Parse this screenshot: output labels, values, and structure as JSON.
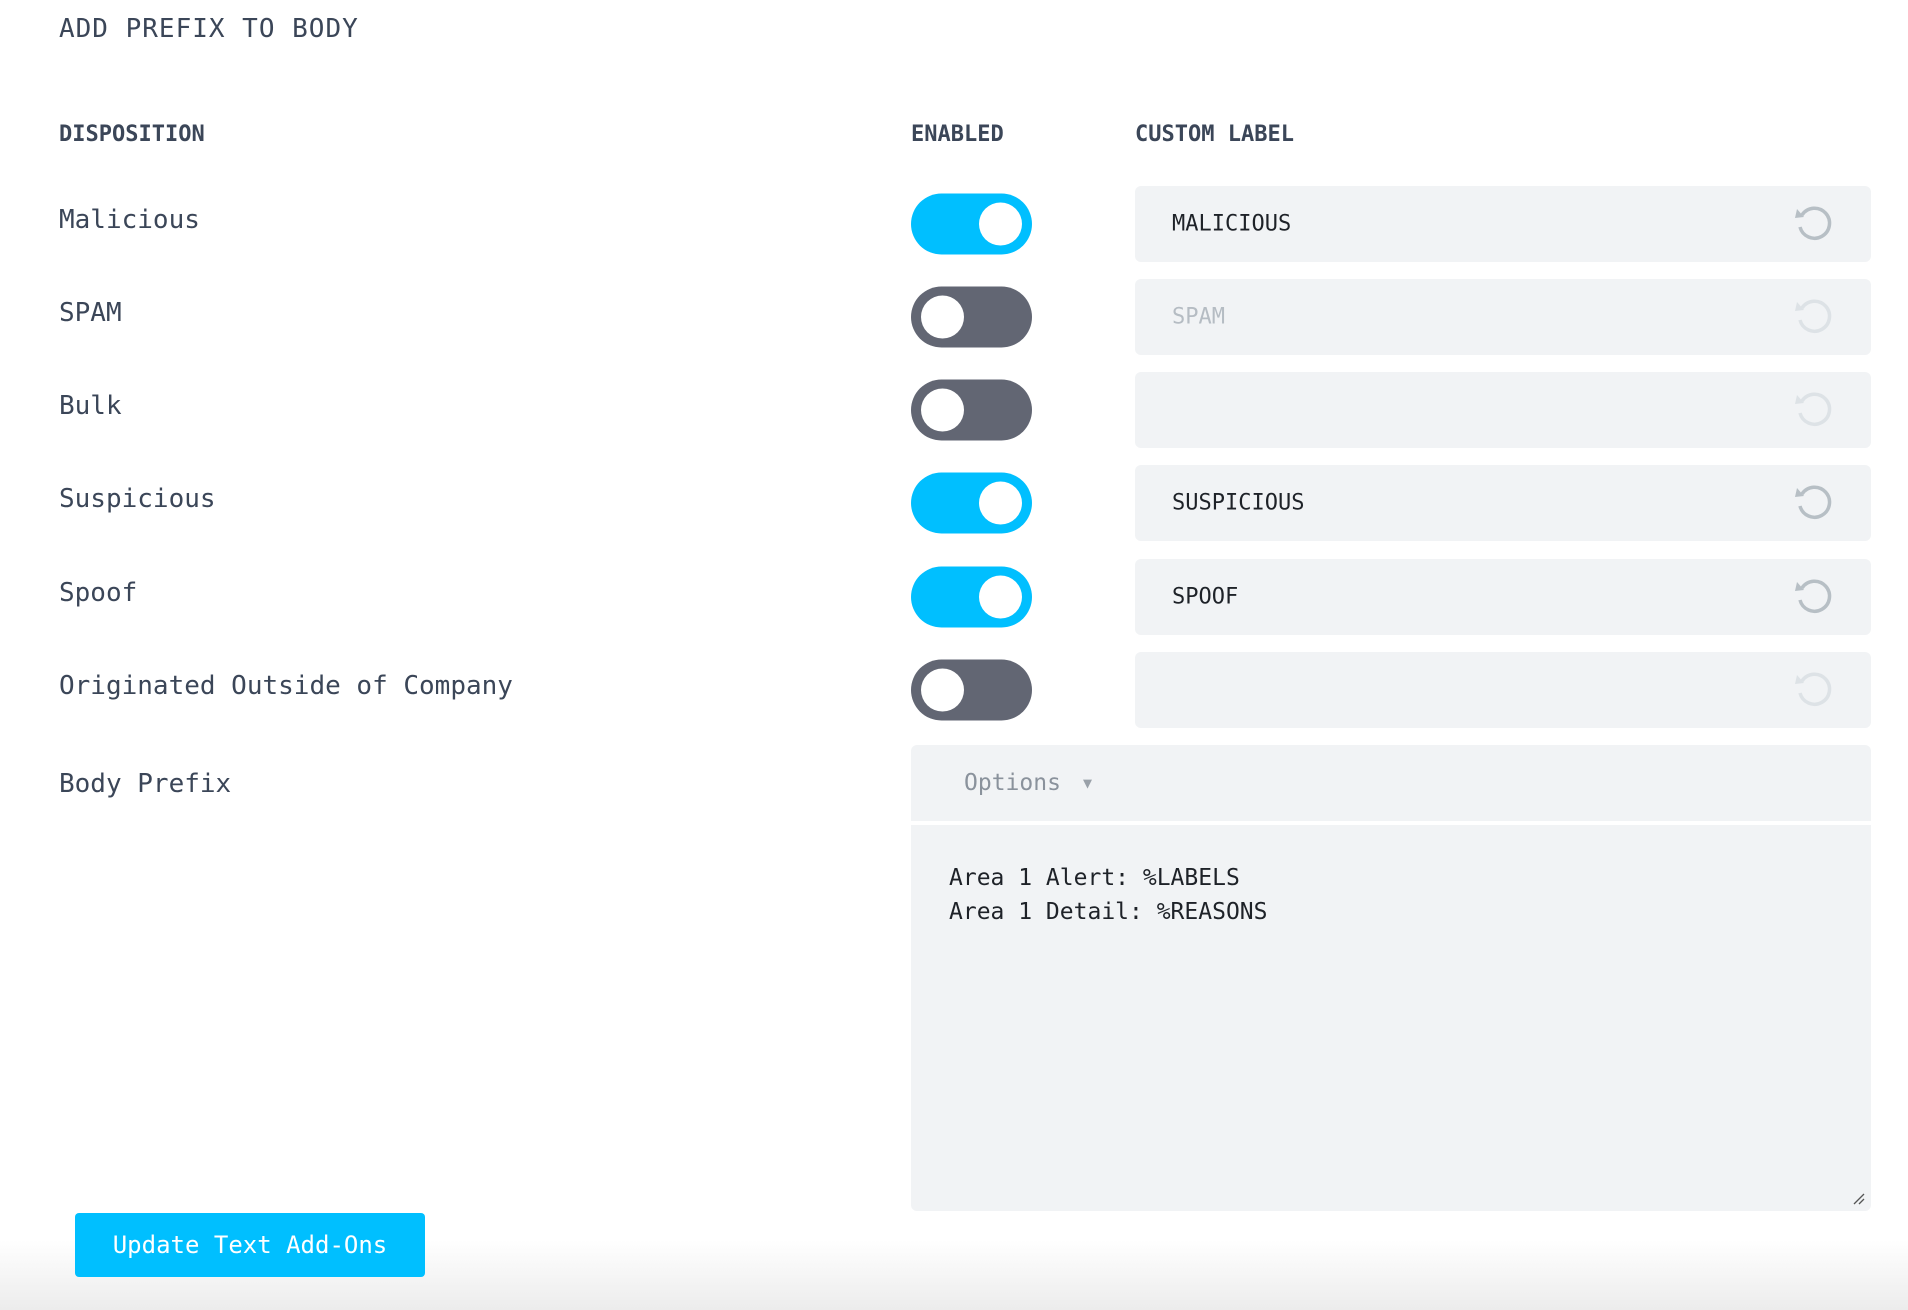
{
  "title": "ADD PREFIX TO BODY",
  "columns": {
    "disposition": "DISPOSITION",
    "enabled": "ENABLED",
    "custom_label": "CUSTOM LABEL"
  },
  "rows": [
    {
      "label": "Malicious",
      "enabled": true,
      "custom_label": "MALICIOUS"
    },
    {
      "label": "SPAM",
      "enabled": false,
      "custom_label": "SPAM"
    },
    {
      "label": "Bulk",
      "enabled": false,
      "custom_label": ""
    },
    {
      "label": "Suspicious",
      "enabled": true,
      "custom_label": "SUSPICIOUS"
    },
    {
      "label": "Spoof",
      "enabled": true,
      "custom_label": "SPOOF"
    },
    {
      "label": "Originated Outside of Company",
      "enabled": false,
      "custom_label": ""
    }
  ],
  "body_prefix": {
    "label": "Body Prefix",
    "options_label": "Options",
    "text": "Area 1 Alert: %LABELS\nArea 1 Detail: %REASONS"
  },
  "submit_label": "Update Text Add-Ons",
  "colors": {
    "accent": "#00bfff",
    "toggle_off": "#626673",
    "field_bg": "#f1f3f5"
  },
  "icons": {
    "reset": "reset-icon",
    "dropdown": "caret-down-icon"
  }
}
